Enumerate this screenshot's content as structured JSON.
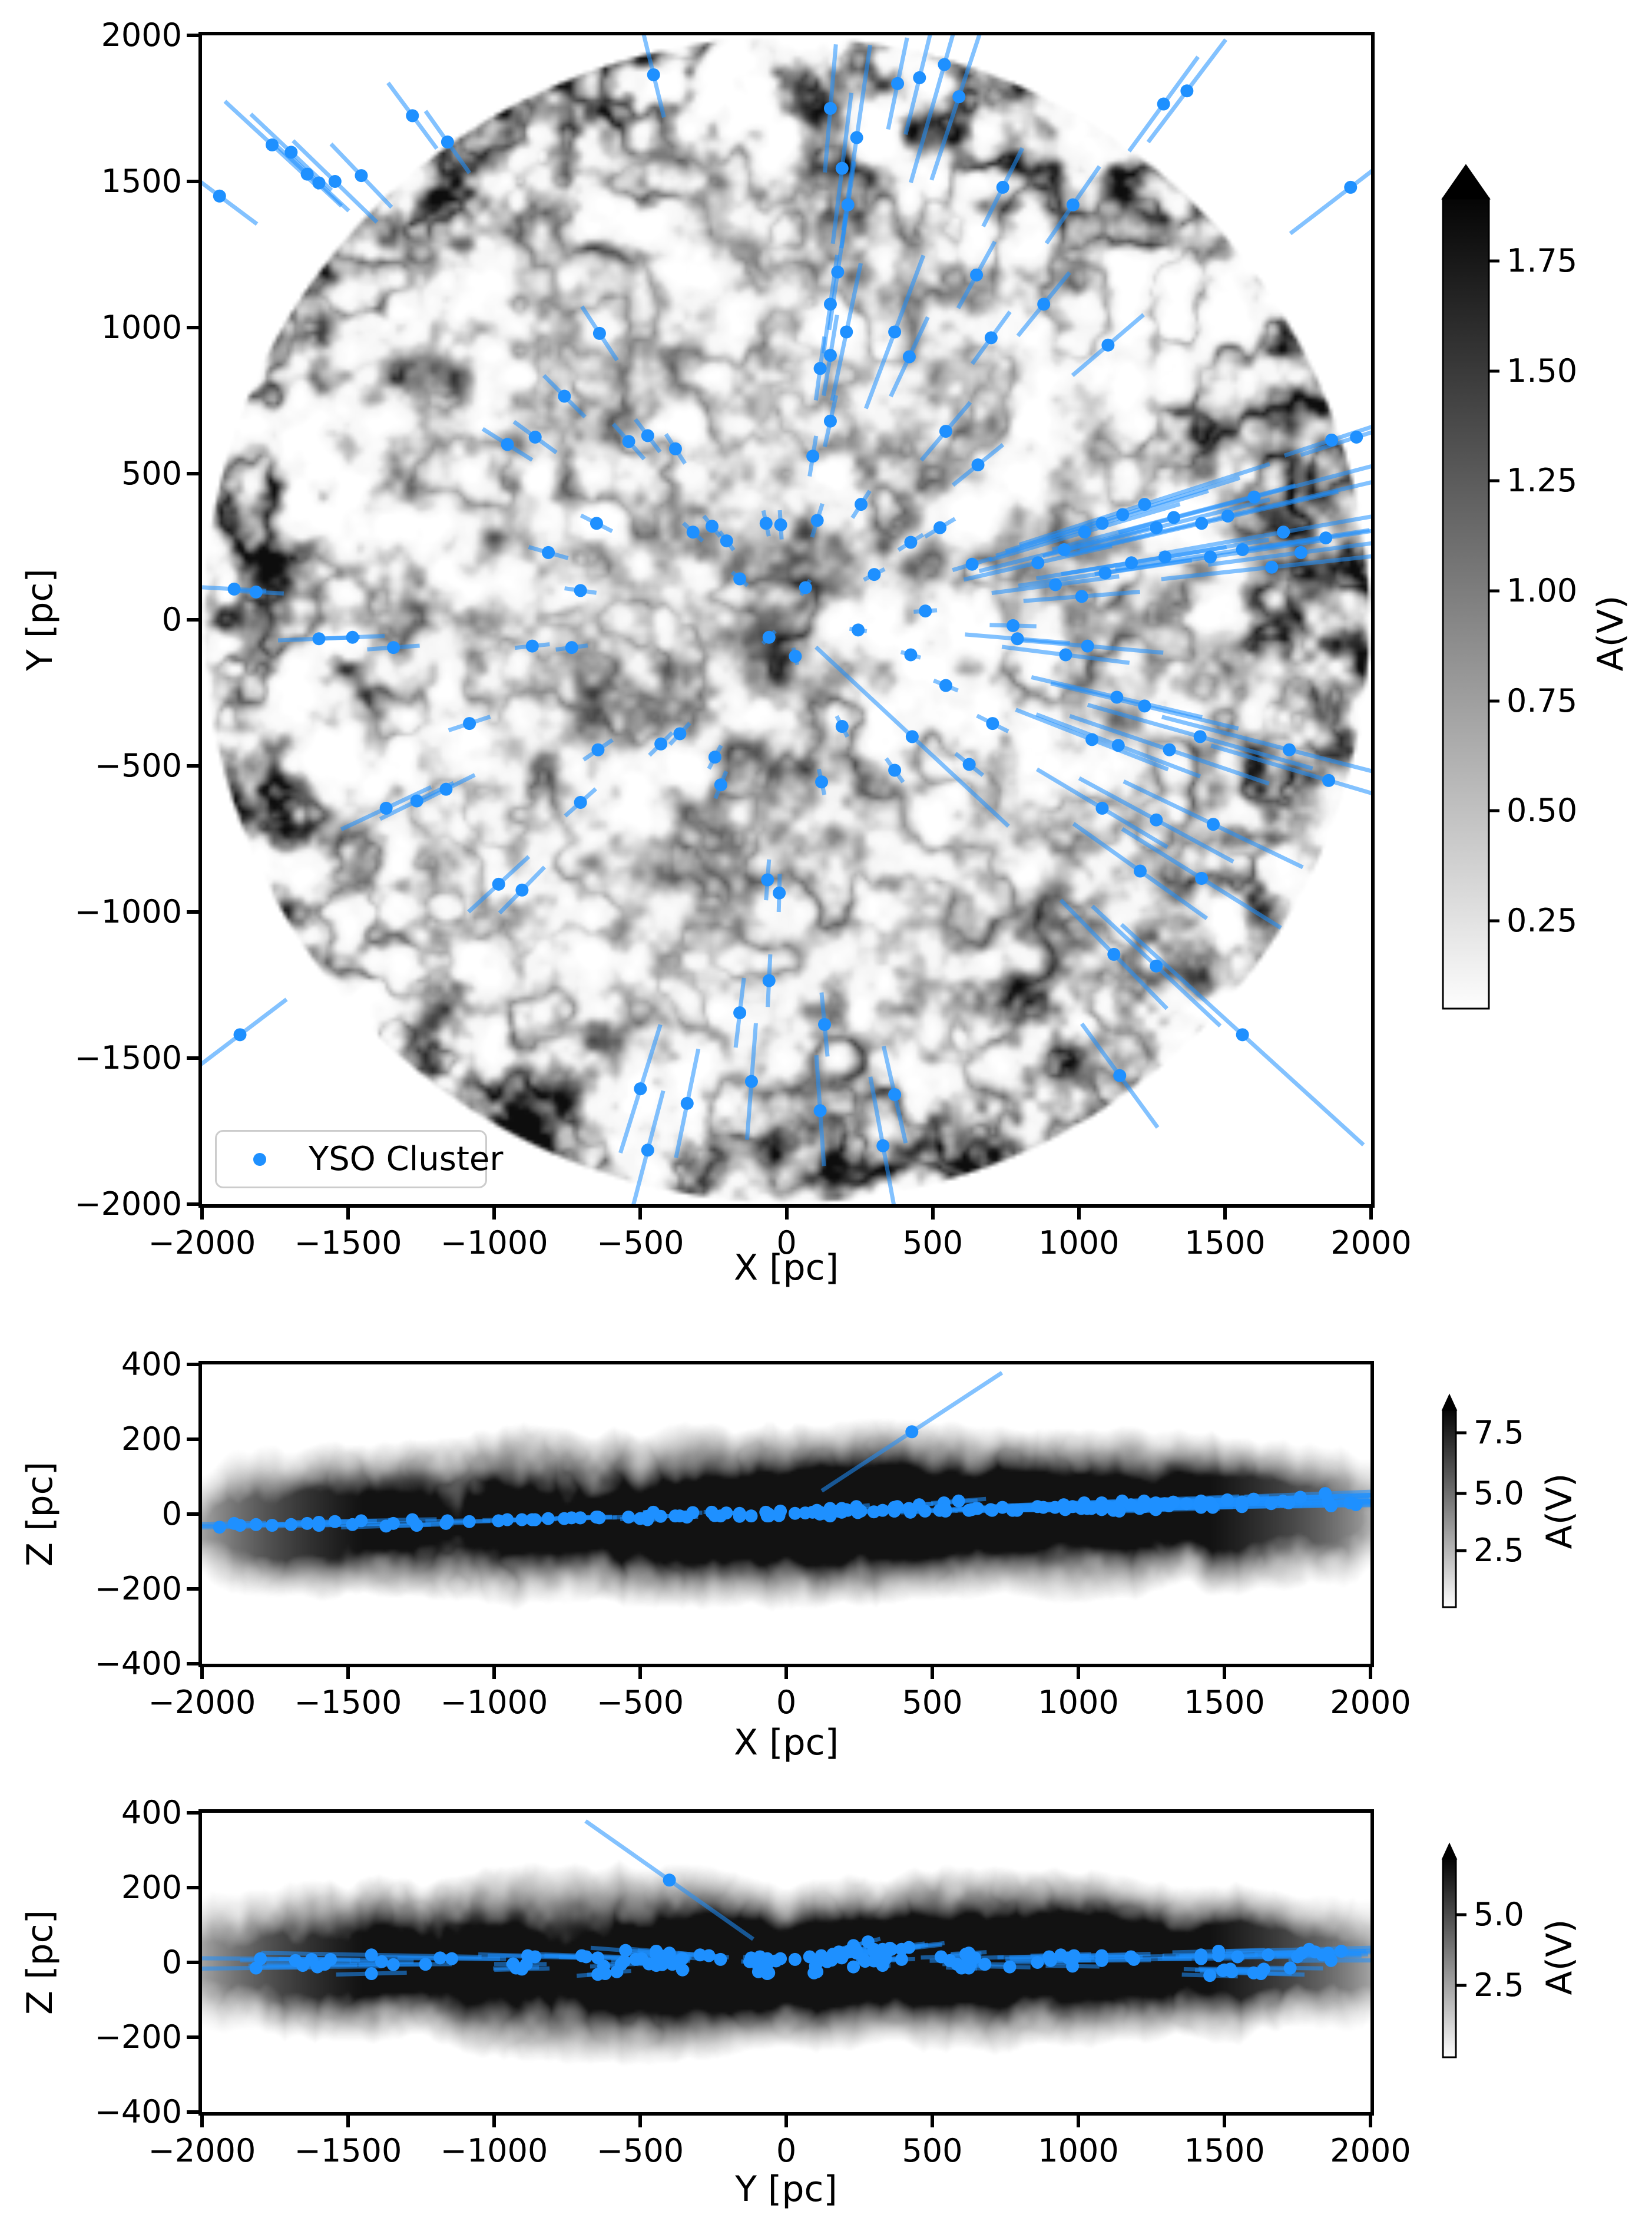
{
  "figure": {
    "legend": {
      "label": "YSO Cluster"
    },
    "panels": [
      {
        "id": "xy",
        "xlabel": "X [pc]",
        "ylabel": "Y [pc]",
        "xtick_labels": [
          "−2000",
          "−1500",
          "−1000",
          "−500",
          "0",
          "500",
          "1000",
          "1500",
          "2000"
        ],
        "ytick_labels": [
          "2000",
          "1500",
          "1000",
          "500",
          "0",
          "−500",
          "−1000",
          "−1500",
          "−2000"
        ],
        "colorbar": {
          "label": "A(V)",
          "tick_labels": [
            "1.75",
            "1.50",
            "1.25",
            "1.00",
            "0.75",
            "0.50",
            "0.25"
          ]
        }
      },
      {
        "id": "xz",
        "xlabel": "X [pc]",
        "ylabel": "Z [pc]",
        "xtick_labels": [
          "−2000",
          "−1500",
          "−1000",
          "−500",
          "0",
          "500",
          "1000",
          "1500",
          "2000"
        ],
        "ytick_labels": [
          "400",
          "200",
          "0",
          "−200",
          "−400"
        ],
        "colorbar": {
          "label": "A(V)",
          "tick_labels": [
            "7.5",
            "5.0",
            "2.5"
          ]
        }
      },
      {
        "id": "yz",
        "xlabel": "Y [pc]",
        "ylabel": "Z [pc]",
        "xtick_labels": [
          "−2000",
          "−1500",
          "−1000",
          "−500",
          "0",
          "500",
          "1000",
          "1500",
          "2000"
        ],
        "ytick_labels": [
          "400",
          "200",
          "0",
          "−200",
          "−400"
        ],
        "colorbar": {
          "label": "A(V)",
          "tick_labels": [
            "5.0",
            "2.5"
          ]
        }
      }
    ]
  },
  "chart_data": {
    "type": "scatter",
    "title": "",
    "series": [
      {
        "name": "YSO Cluster",
        "marker": "circle",
        "marker_color": "#1E90FF",
        "errorbar_color": "#1E90FF",
        "errorbar_alpha": 0.55
      }
    ],
    "background_map": "grayscale dust extinction A(V) map (white=low, black=high), circular r=2000 pc in X-Y panel, galactic-plane band in X-Z and Y-Z panels",
    "panels": [
      {
        "x": "X [pc]",
        "y": "Y [pc]",
        "xlim": [
          -2000,
          2000
        ],
        "ylim": [
          -2000,
          2000
        ],
        "xticks": [
          -2000,
          -1500,
          -1000,
          -500,
          0,
          500,
          1000,
          1500,
          2000
        ],
        "yticks": [
          2000,
          1500,
          1000,
          500,
          0,
          -500,
          -1000,
          -1500,
          -2000
        ],
        "colorbar": {
          "label": "A(V)",
          "ticks": [
            1.75,
            1.5,
            1.25,
            1.0,
            0.75,
            0.5,
            0.25
          ],
          "range": [
            0.05,
            1.9
          ],
          "extend": "max"
        },
        "legend": {
          "label": "YSO Cluster",
          "position": "lower left"
        }
      },
      {
        "x": "X [pc]",
        "y": "Z [pc]",
        "xlim": [
          -2000,
          2000
        ],
        "ylim": [
          -400,
          400
        ],
        "xticks": [
          -2000,
          -1500,
          -1000,
          -500,
          0,
          500,
          1000,
          1500,
          2000
        ],
        "yticks": [
          400,
          200,
          0,
          -200,
          -400
        ],
        "colorbar": {
          "label": "A(V)",
          "ticks": [
            7.5,
            5.0,
            2.5
          ],
          "range": [
            0.1,
            8.5
          ],
          "extend": "max"
        }
      },
      {
        "x": "Y [pc]",
        "y": "Z [pc]",
        "xlim": [
          -2000,
          2000
        ],
        "ylim": [
          -400,
          400
        ],
        "xticks": [
          -2000,
          -1500,
          -1000,
          -500,
          0,
          500,
          1000,
          1500,
          2000
        ],
        "yticks": [
          400,
          200,
          0,
          -200,
          -400
        ],
        "colorbar": {
          "label": "A(V)",
          "ticks": [
            5.0,
            2.5
          ],
          "range": [
            0.1,
            6.5
          ],
          "extend": "max"
        }
      }
    ],
    "clusters_fields": [
      "x_pc",
      "y_pc",
      "z_pc",
      "dist_err_pc"
    ],
    "clusters": [
      [
        540,
        1900,
        30,
        420
      ],
      [
        590,
        1790,
        35,
        300
      ],
      [
        455,
        1855,
        25,
        200
      ],
      [
        380,
        1835,
        20,
        160
      ],
      [
        150,
        1750,
        15,
        220
      ],
      [
        240,
        1650,
        20,
        320
      ],
      [
        190,
        1545,
        15,
        260
      ],
      [
        210,
        1420,
        10,
        150
      ],
      [
        175,
        1190,
        8,
        200
      ],
      [
        150,
        1080,
        5,
        170
      ],
      [
        205,
        985,
        12,
        240
      ],
      [
        150,
        905,
        5,
        140
      ],
      [
        115,
        860,
        0,
        110
      ],
      [
        370,
        985,
        18,
        280
      ],
      [
        420,
        900,
        15,
        150
      ],
      [
        545,
        645,
        12,
        130
      ],
      [
        655,
        530,
        15,
        110
      ],
      [
        150,
        680,
        -5,
        90
      ],
      [
        90,
        560,
        5,
        70
      ],
      [
        -20,
        325,
        8,
        50
      ],
      [
        -70,
        330,
        5,
        45
      ],
      [
        105,
        340,
        10,
        60
      ],
      [
        -1940,
        1450,
        -35,
        160
      ],
      [
        -1760,
        1625,
        -30,
        220
      ],
      [
        -1695,
        1600,
        -28,
        190
      ],
      [
        -1640,
        1525,
        -25,
        160
      ],
      [
        -1600,
        1495,
        -22,
        140
      ],
      [
        -1545,
        1500,
        -20,
        200
      ],
      [
        -1455,
        1520,
        -18,
        150
      ],
      [
        -1280,
        1725,
        -15,
        140
      ],
      [
        -1160,
        1635,
        -18,
        130
      ],
      [
        -455,
        1865,
        5,
        150
      ],
      [
        -640,
        980,
        -10,
        110
      ],
      [
        -760,
        765,
        -12,
        100
      ],
      [
        -860,
        625,
        -15,
        90
      ],
      [
        -955,
        600,
        -15,
        100
      ],
      [
        -540,
        610,
        -8,
        80
      ],
      [
        -475,
        630,
        -6,
        70
      ],
      [
        -380,
        585,
        -5,
        60
      ],
      [
        1290,
        1765,
        25,
        200
      ],
      [
        1370,
        1810,
        28,
        220
      ],
      [
        980,
        1420,
        20,
        160
      ],
      [
        740,
        1480,
        18,
        150
      ],
      [
        1930,
        1480,
        30,
        260
      ],
      [
        650,
        1180,
        15,
        130
      ],
      [
        880,
        1080,
        18,
        140
      ],
      [
        700,
        965,
        12,
        110
      ],
      [
        1100,
        940,
        20,
        160
      ],
      [
        1950,
        625,
        25,
        200
      ],
      [
        1865,
        615,
        22,
        170
      ],
      [
        860,
        195,
        20,
        260
      ],
      [
        950,
        240,
        25,
        300
      ],
      [
        1020,
        300,
        30,
        340
      ],
      [
        1080,
        330,
        30,
        380
      ],
      [
        1150,
        360,
        35,
        420
      ],
      [
        1225,
        395,
        35,
        450
      ],
      [
        1265,
        315,
        30,
        400
      ],
      [
        1325,
        350,
        32,
        430
      ],
      [
        1090,
        160,
        22,
        300
      ],
      [
        1180,
        195,
        25,
        330
      ],
      [
        1295,
        215,
        28,
        360
      ],
      [
        1420,
        330,
        35,
        480
      ],
      [
        1510,
        355,
        38,
        520
      ],
      [
        1600,
        420,
        40,
        480
      ],
      [
        1700,
        300,
        35,
        430
      ],
      [
        1450,
        215,
        30,
        400
      ],
      [
        1560,
        240,
        32,
        440
      ],
      [
        1660,
        180,
        28,
        380
      ],
      [
        920,
        120,
        18,
        220
      ],
      [
        1010,
        80,
        15,
        200
      ],
      [
        1845,
        280,
        55,
        280
      ],
      [
        1760,
        230,
        45,
        320
      ],
      [
        790,
        -65,
        10,
        180
      ],
      [
        955,
        -120,
        12,
        220
      ],
      [
        1030,
        -90,
        15,
        260
      ],
      [
        1130,
        -265,
        18,
        300
      ],
      [
        1225,
        -295,
        20,
        330
      ],
      [
        1045,
        -410,
        15,
        280
      ],
      [
        1135,
        -430,
        18,
        300
      ],
      [
        1310,
        -445,
        22,
        360
      ],
      [
        1415,
        -400,
        25,
        400
      ],
      [
        1720,
        -445,
        30,
        450
      ],
      [
        1855,
        -550,
        32,
        420
      ],
      [
        1080,
        -645,
        12,
        260
      ],
      [
        1265,
        -685,
        15,
        300
      ],
      [
        1460,
        -700,
        18,
        340
      ],
      [
        1210,
        -860,
        15,
        280
      ],
      [
        1420,
        -885,
        18,
        320
      ],
      [
        1120,
        -1145,
        10,
        260
      ],
      [
        1265,
        -1185,
        12,
        300
      ],
      [
        1560,
        -1420,
        20,
        560
      ],
      [
        1140,
        -1560,
        8,
        220
      ],
      [
        -120,
        -1580,
        -5,
        200
      ],
      [
        115,
        -1680,
        5,
        190
      ],
      [
        330,
        -1800,
        10,
        240
      ],
      [
        370,
        -1625,
        8,
        170
      ],
      [
        -340,
        -1655,
        -8,
        190
      ],
      [
        -500,
        -1605,
        -12,
        230
      ],
      [
        -475,
        -1815,
        -15,
        210
      ],
      [
        130,
        -1385,
        2,
        110
      ],
      [
        -60,
        -1235,
        -5,
        90
      ],
      [
        -160,
        -1345,
        -6,
        120
      ],
      [
        -1890,
        105,
        -25,
        110
      ],
      [
        -1815,
        95,
        -28,
        95
      ],
      [
        -1600,
        -65,
        -30,
        140
      ],
      [
        -1485,
        -60,
        -28,
        110
      ],
      [
        -1370,
        -645,
        -32,
        170
      ],
      [
        -1265,
        -620,
        -30,
        140
      ],
      [
        -1165,
        -580,
        -25,
        110
      ],
      [
        -985,
        -905,
        -18,
        140
      ],
      [
        -905,
        -925,
        -15,
        110
      ],
      [
        -1085,
        -355,
        -20,
        75
      ],
      [
        -1345,
        -95,
        -25,
        90
      ],
      [
        -870,
        -90,
        -15,
        60
      ],
      [
        -1870,
        -1420,
        -30,
        200
      ],
      [
        -255,
        320,
        5,
        45
      ],
      [
        -320,
        300,
        4,
        45
      ],
      [
        -205,
        270,
        3,
        40
      ],
      [
        -160,
        140,
        2,
        35
      ],
      [
        -60,
        -60,
        0,
        30
      ],
      [
        30,
        -125,
        2,
        30
      ],
      [
        -365,
        -390,
        -5,
        50
      ],
      [
        -430,
        -425,
        -6,
        55
      ],
      [
        -245,
        -470,
        -4,
        45
      ],
      [
        -225,
        -565,
        -5,
        50
      ],
      [
        -645,
        -445,
        -8,
        60
      ],
      [
        -705,
        -625,
        -10,
        70
      ],
      [
        -65,
        -890,
        -5,
        70
      ],
      [
        -25,
        -935,
        -4,
        65
      ],
      [
        120,
        -555,
        3,
        45
      ],
      [
        190,
        -365,
        5,
        40
      ],
      [
        370,
        -515,
        8,
        50
      ],
      [
        425,
        -120,
        5,
        35
      ],
      [
        545,
        -225,
        8,
        45
      ],
      [
        625,
        -495,
        10,
        60
      ],
      [
        705,
        -355,
        10,
        60
      ],
      [
        635,
        190,
        12,
        70
      ],
      [
        525,
        315,
        10,
        60
      ],
      [
        425,
        265,
        8,
        50
      ],
      [
        300,
        155,
        6,
        40
      ],
      [
        255,
        395,
        8,
        55
      ],
      [
        -705,
        100,
        -10,
        55
      ],
      [
        -735,
        -95,
        -10,
        55
      ],
      [
        245,
        -35,
        4,
        30
      ],
      [
        65,
        110,
        3,
        30
      ],
      [
        475,
        30,
        8,
        40
      ],
      [
        775,
        -20,
        10,
        80
      ],
      [
        430,
        -400,
        220,
        450
      ],
      [
        -650,
        330,
        -8,
        60
      ],
      [
        -815,
        230,
        -12,
        70
      ]
    ]
  }
}
